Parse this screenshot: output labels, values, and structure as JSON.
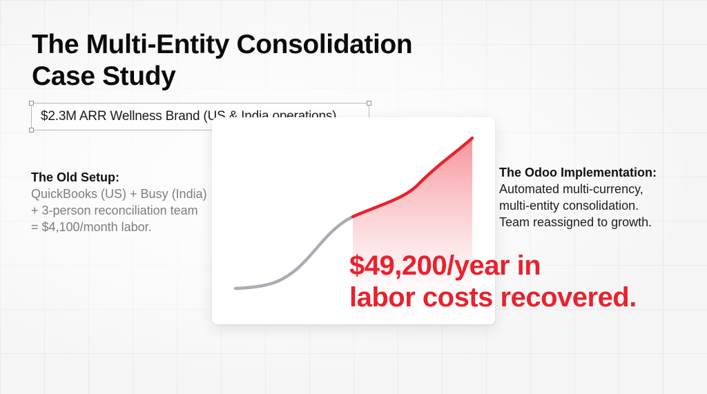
{
  "slide": {
    "title_line1": "The Multi-Entity Consolidation",
    "title_line2": "Case Study",
    "subtitle": "$2.3M ARR Wellness Brand (US & India operations).",
    "old_setup": {
      "heading": "The Old Setup:",
      "lines": [
        "QuickBooks (US) + Busy (India)",
        "+ 3-person reconciliation team",
        "= $4,100/month labor."
      ]
    },
    "implementation": {
      "heading": "The Odoo Implementation:",
      "lines": [
        "Automated multi-currency,",
        "multi-entity consolidation.",
        "Team reassigned to growth."
      ]
    },
    "highlight": {
      "line1": "$49,200/year in",
      "line2": "labor costs recovered."
    }
  },
  "colors": {
    "accent_red": "#e8222e",
    "curve_gray": "#a9adb3",
    "text_dark": "#0b0b0c",
    "text_muted": "#7d7d82"
  }
}
